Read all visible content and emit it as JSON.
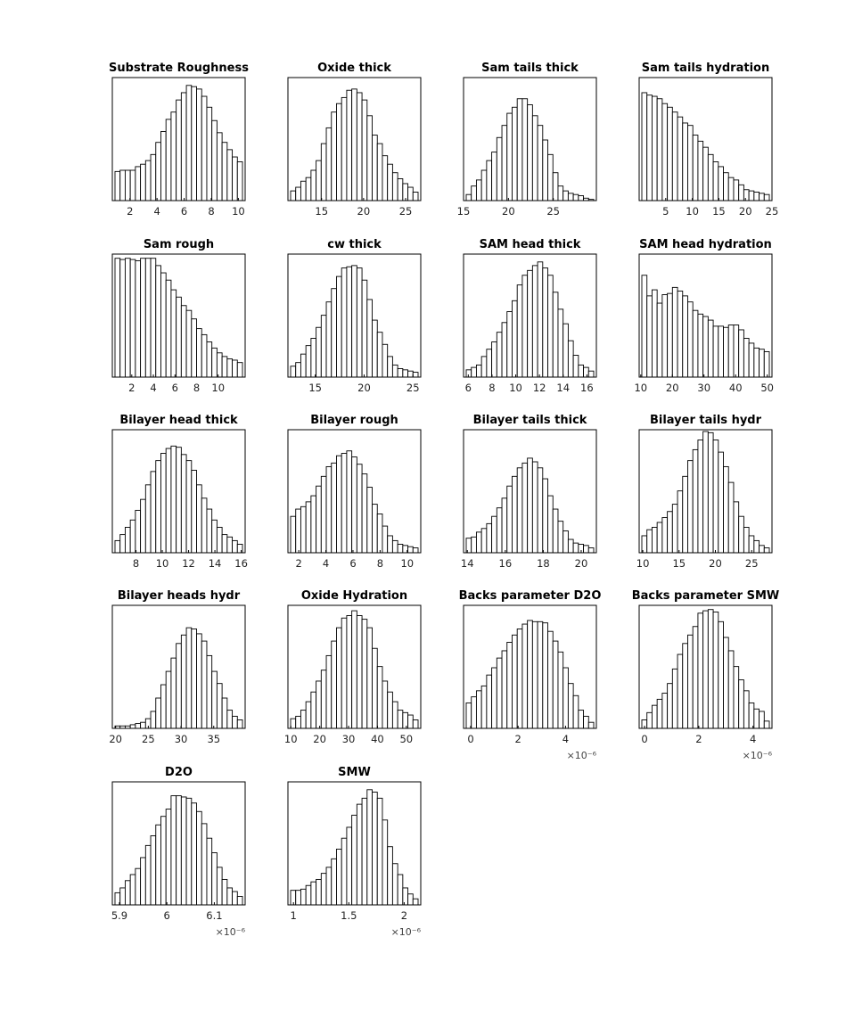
{
  "figure": {
    "background": "#ffffff",
    "bar_fill": "#ffffff",
    "bar_stroke": "#000000"
  },
  "chart_data": [
    {
      "type": "bar",
      "title": "Substrate Roughness",
      "xlim": [
        0.7,
        10.5
      ],
      "xticks": [
        2,
        4,
        6,
        8,
        10
      ],
      "xtick_labels": [
        "2",
        "4",
        "6",
        "8",
        "10"
      ],
      "multiplier": "",
      "values": [
        0.24,
        0.25,
        0.25,
        0.25,
        0.28,
        0.3,
        0.33,
        0.38,
        0.48,
        0.57,
        0.67,
        0.73,
        0.83,
        0.89,
        0.95,
        0.94,
        0.92,
        0.86,
        0.77,
        0.66,
        0.56,
        0.48,
        0.42,
        0.36,
        0.32
      ]
    },
    {
      "type": "bar",
      "title": "Oxide thick",
      "xlim": [
        11,
        26.8
      ],
      "xticks": [
        15,
        20,
        25
      ],
      "xtick_labels": [
        "15",
        "20",
        "25"
      ],
      "multiplier": "",
      "values": [
        0.08,
        0.11,
        0.16,
        0.19,
        0.25,
        0.33,
        0.47,
        0.6,
        0.73,
        0.8,
        0.85,
        0.91,
        0.92,
        0.89,
        0.83,
        0.7,
        0.54,
        0.47,
        0.37,
        0.3,
        0.23,
        0.18,
        0.14,
        0.11,
        0.07
      ]
    },
    {
      "type": "bar",
      "title": "Sam tails thick",
      "xlim": [
        15,
        29.8
      ],
      "xticks": [
        15,
        20,
        25
      ],
      "xtick_labels": [
        "15",
        "20",
        "25"
      ],
      "multiplier": "",
      "values": [
        0.05,
        0.12,
        0.17,
        0.25,
        0.33,
        0.4,
        0.52,
        0.62,
        0.72,
        0.77,
        0.84,
        0.84,
        0.79,
        0.7,
        0.62,
        0.5,
        0.38,
        0.23,
        0.12,
        0.08,
        0.06,
        0.05,
        0.04,
        0.02,
        0.01
      ]
    },
    {
      "type": "bar",
      "title": "Sam tails hydration",
      "xlim": [
        0,
        25
      ],
      "xticks": [
        5,
        10,
        15,
        20,
        25
      ],
      "xtick_labels": [
        "5",
        "10",
        "15",
        "20",
        "25"
      ],
      "multiplier": "",
      "values": [
        0.89,
        0.87,
        0.86,
        0.84,
        0.8,
        0.77,
        0.73,
        0.69,
        0.64,
        0.62,
        0.54,
        0.49,
        0.44,
        0.38,
        0.32,
        0.28,
        0.23,
        0.19,
        0.17,
        0.13,
        0.09,
        0.08,
        0.07,
        0.06,
        0.05
      ]
    },
    {
      "type": "bar",
      "title": "Sam rough",
      "xlim": [
        0.2,
        12.5
      ],
      "xticks": [
        2,
        4,
        6,
        8,
        10
      ],
      "xtick_labels": [
        "2",
        "4",
        "6",
        "8",
        "10"
      ],
      "multiplier": "",
      "values": [
        0.98,
        0.97,
        0.98,
        0.97,
        0.96,
        0.98,
        0.98,
        0.98,
        0.92,
        0.86,
        0.8,
        0.72,
        0.66,
        0.59,
        0.55,
        0.48,
        0.4,
        0.35,
        0.29,
        0.24,
        0.2,
        0.17,
        0.15,
        0.14,
        0.12
      ]
    },
    {
      "type": "bar",
      "title": "cw thick",
      "xlim": [
        12.2,
        25.8
      ],
      "xticks": [
        15,
        20,
        25
      ],
      "xtick_labels": [
        "15",
        "20",
        "25"
      ],
      "multiplier": "",
      "values": [
        0.09,
        0.12,
        0.19,
        0.26,
        0.32,
        0.41,
        0.51,
        0.62,
        0.73,
        0.83,
        0.9,
        0.91,
        0.92,
        0.9,
        0.8,
        0.64,
        0.47,
        0.37,
        0.27,
        0.17,
        0.1,
        0.07,
        0.06,
        0.05,
        0.04
      ]
    },
    {
      "type": "bar",
      "title": "SAM head thick",
      "xlim": [
        5.6,
        16.8
      ],
      "xticks": [
        6,
        8,
        10,
        12,
        14,
        16
      ],
      "xtick_labels": [
        "6",
        "8",
        "10",
        "12",
        "14",
        "16"
      ],
      "multiplier": "",
      "values": [
        0.06,
        0.08,
        0.1,
        0.17,
        0.23,
        0.29,
        0.37,
        0.45,
        0.54,
        0.63,
        0.76,
        0.84,
        0.88,
        0.92,
        0.95,
        0.9,
        0.84,
        0.7,
        0.56,
        0.44,
        0.3,
        0.18,
        0.1,
        0.08,
        0.05
      ]
    },
    {
      "type": "bar",
      "title": "SAM head hydration",
      "xlim": [
        9.5,
        51.5
      ],
      "xticks": [
        10,
        20,
        30,
        40,
        50
      ],
      "xtick_labels": [
        "10",
        "20",
        "30",
        "40",
        "50"
      ],
      "multiplier": "",
      "values": [
        0.84,
        0.67,
        0.72,
        0.61,
        0.68,
        0.69,
        0.74,
        0.71,
        0.67,
        0.62,
        0.55,
        0.52,
        0.5,
        0.47,
        0.42,
        0.42,
        0.41,
        0.43,
        0.43,
        0.39,
        0.32,
        0.28,
        0.24,
        0.23,
        0.21
      ]
    },
    {
      "type": "bar",
      "title": "Bilayer head thick",
      "xlim": [
        6.2,
        16.3
      ],
      "xticks": [
        8,
        10,
        12,
        14,
        16
      ],
      "xtick_labels": [
        "8",
        "10",
        "12",
        "14",
        "16"
      ],
      "multiplier": "",
      "values": [
        0.1,
        0.15,
        0.21,
        0.27,
        0.35,
        0.44,
        0.56,
        0.67,
        0.76,
        0.82,
        0.86,
        0.88,
        0.87,
        0.81,
        0.76,
        0.68,
        0.56,
        0.45,
        0.36,
        0.27,
        0.21,
        0.15,
        0.13,
        0.1,
        0.07
      ]
    },
    {
      "type": "bar",
      "title": "Bilayer rough",
      "xlim": [
        1.2,
        11
      ],
      "xticks": [
        2,
        4,
        6,
        8,
        10
      ],
      "xtick_labels": [
        "2",
        "4",
        "6",
        "8",
        "10"
      ],
      "multiplier": "",
      "values": [
        0.3,
        0.36,
        0.38,
        0.42,
        0.47,
        0.55,
        0.63,
        0.71,
        0.74,
        0.8,
        0.82,
        0.84,
        0.79,
        0.73,
        0.65,
        0.54,
        0.4,
        0.32,
        0.22,
        0.14,
        0.1,
        0.07,
        0.06,
        0.05,
        0.04
      ]
    },
    {
      "type": "bar",
      "title": "Bilayer tails thick",
      "xlim": [
        13.8,
        20.8
      ],
      "xticks": [
        14,
        16,
        18,
        20
      ],
      "xtick_labels": [
        "14",
        "16",
        "18",
        "20"
      ],
      "multiplier": "",
      "values": [
        0.12,
        0.13,
        0.17,
        0.2,
        0.24,
        0.3,
        0.37,
        0.45,
        0.55,
        0.63,
        0.7,
        0.74,
        0.78,
        0.75,
        0.7,
        0.61,
        0.47,
        0.36,
        0.26,
        0.18,
        0.11,
        0.08,
        0.07,
        0.06,
        0.04
      ]
    },
    {
      "type": "bar",
      "title": "Bilayer tails hydr",
      "xlim": [
        9.5,
        27.8
      ],
      "xticks": [
        10,
        15,
        20,
        25
      ],
      "xtick_labels": [
        "10",
        "15",
        "20",
        "25"
      ],
      "multiplier": "",
      "values": [
        0.14,
        0.19,
        0.21,
        0.25,
        0.29,
        0.34,
        0.4,
        0.51,
        0.63,
        0.76,
        0.85,
        0.93,
        1.0,
        0.99,
        0.93,
        0.83,
        0.71,
        0.58,
        0.42,
        0.3,
        0.21,
        0.14,
        0.1,
        0.06,
        0.04
      ]
    },
    {
      "type": "bar",
      "title": "Bilayer heads hydr",
      "xlim": [
        19.5,
        39.8
      ],
      "xticks": [
        20,
        25,
        30,
        35
      ],
      "xtick_labels": [
        "20",
        "25",
        "30",
        "35"
      ],
      "multiplier": "",
      "values": [
        0.02,
        0.02,
        0.02,
        0.03,
        0.04,
        0.05,
        0.08,
        0.14,
        0.25,
        0.36,
        0.47,
        0.58,
        0.7,
        0.77,
        0.83,
        0.82,
        0.78,
        0.72,
        0.6,
        0.47,
        0.37,
        0.25,
        0.15,
        0.1,
        0.07
      ]
    },
    {
      "type": "bar",
      "title": "Oxide Hydration",
      "xlim": [
        9,
        55
      ],
      "xticks": [
        10,
        20,
        30,
        40,
        50
      ],
      "xtick_labels": [
        "10",
        "20",
        "30",
        "40",
        "50"
      ],
      "multiplier": "",
      "values": [
        0.08,
        0.1,
        0.15,
        0.22,
        0.3,
        0.39,
        0.48,
        0.6,
        0.72,
        0.83,
        0.91,
        0.93,
        0.97,
        0.93,
        0.9,
        0.83,
        0.66,
        0.51,
        0.39,
        0.3,
        0.22,
        0.15,
        0.13,
        0.11,
        0.07
      ]
    },
    {
      "type": "bar",
      "title": "Backs parameter D2O",
      "xlim": [
        -0.3,
        5.3
      ],
      "xticks": [
        0,
        2,
        4
      ],
      "xtick_labels": [
        "0",
        "2",
        "4"
      ],
      "multiplier": "×10⁻⁶",
      "values": [
        0.21,
        0.26,
        0.31,
        0.35,
        0.44,
        0.5,
        0.58,
        0.64,
        0.71,
        0.77,
        0.82,
        0.86,
        0.89,
        0.88,
        0.88,
        0.87,
        0.8,
        0.72,
        0.63,
        0.5,
        0.37,
        0.27,
        0.15,
        0.1,
        0.05
      ]
    },
    {
      "type": "bar",
      "title": "Backs parameter SMW",
      "xlim": [
        -0.2,
        4.7
      ],
      "xticks": [
        0,
        2,
        4
      ],
      "xtick_labels": [
        "0",
        "2",
        "4"
      ],
      "multiplier": "×10⁻⁶",
      "values": [
        0.07,
        0.13,
        0.19,
        0.24,
        0.29,
        0.37,
        0.49,
        0.61,
        0.7,
        0.77,
        0.84,
        0.95,
        0.97,
        0.98,
        0.96,
        0.88,
        0.75,
        0.64,
        0.51,
        0.4,
        0.31,
        0.21,
        0.16,
        0.14,
        0.06
      ]
    },
    {
      "type": "bar",
      "title": "D2O",
      "xlim": [
        5.885,
        6.165
      ],
      "xticks": [
        5.9,
        6,
        6.1
      ],
      "xtick_labels": [
        "5.9",
        "6",
        "6.1"
      ],
      "multiplier": "×10⁻⁶",
      "values": [
        0.1,
        0.14,
        0.2,
        0.25,
        0.3,
        0.39,
        0.49,
        0.57,
        0.66,
        0.73,
        0.79,
        0.9,
        0.9,
        0.89,
        0.88,
        0.84,
        0.77,
        0.67,
        0.55,
        0.43,
        0.31,
        0.21,
        0.14,
        0.11,
        0.07
      ]
    },
    {
      "type": "bar",
      "title": "SMW",
      "xlim": [
        0.95,
        2.15
      ],
      "xticks": [
        1,
        1.5,
        2
      ],
      "xtick_labels": [
        "1",
        "1.5",
        "2"
      ],
      "multiplier": "×10⁻⁶",
      "values": [
        0.12,
        0.12,
        0.13,
        0.16,
        0.19,
        0.21,
        0.26,
        0.31,
        0.38,
        0.46,
        0.55,
        0.64,
        0.74,
        0.83,
        0.88,
        0.95,
        0.93,
        0.88,
        0.7,
        0.48,
        0.34,
        0.25,
        0.14,
        0.09,
        0.05
      ]
    }
  ]
}
